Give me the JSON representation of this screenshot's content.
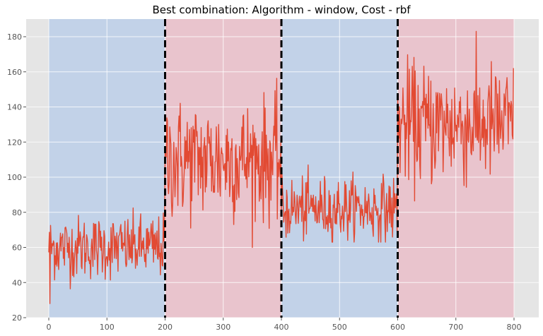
{
  "chart_data": {
    "type": "line",
    "title": "Best combination: Algorithm - window, Cost - rbf",
    "xlabel": "",
    "ylabel": "",
    "xlim": [
      -40,
      845
    ],
    "ylim": [
      20,
      190
    ],
    "x_ticks": [
      0,
      100,
      200,
      300,
      400,
      500,
      600,
      700,
      800
    ],
    "y_ticks": [
      20,
      40,
      60,
      80,
      100,
      120,
      140,
      160,
      180
    ],
    "grid": true,
    "style": "ggplot",
    "line_color": "#E24A33",
    "n_points": 800,
    "segments": [
      {
        "start": 0,
        "end": 200,
        "mean": 60,
        "std": 9,
        "min": 28,
        "max": 89,
        "shade": "#C2D2E8"
      },
      {
        "start": 200,
        "end": 400,
        "mean": 110,
        "std": 17,
        "min": 60,
        "max": 158,
        "shade": "#E9C4CD"
      },
      {
        "start": 400,
        "end": 600,
        "mean": 82,
        "std": 9,
        "min": 63,
        "max": 111,
        "shade": "#C2D2E8"
      },
      {
        "start": 600,
        "end": 800,
        "mean": 130,
        "std": 17,
        "min": 73,
        "max": 183,
        "shade": "#E9C4CD"
      }
    ],
    "change_points": [
      200,
      400,
      600
    ],
    "change_point_style": "black dashed vertical line",
    "legend": null
  },
  "colors": {
    "axes_bg": "#E5E5E5",
    "grid": "#FFFFFF",
    "line": "#E24A33",
    "blue_region": "#C2D2E8",
    "red_region": "#E9C4CD",
    "changepoint": "#000000"
  }
}
